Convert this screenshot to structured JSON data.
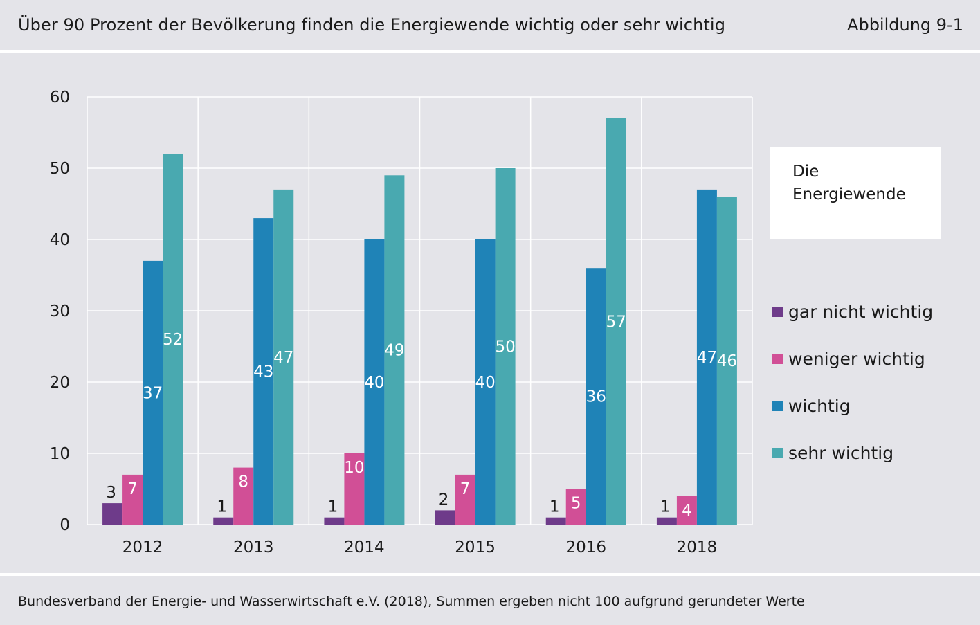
{
  "header": {
    "title": "Über 90 Prozent der Bevölkerung finden die Energiewende wichtig oder sehr wichtig",
    "figure_label": "Abbildung 9-1"
  },
  "footer": {
    "source": "Bundesverband der Energie- und Wasserwirtschaft e.V. (2018), Summen ergeben nicht 100 aufgrund gerundeter Werte"
  },
  "legend": {
    "title": "Die\nEnergiewende",
    "placement": "right"
  },
  "chart_data": {
    "type": "bar",
    "title": "",
    "xlabel": "",
    "ylabel": "",
    "ylim": [
      0,
      60
    ],
    "yticks": [
      0,
      10,
      20,
      30,
      40,
      50,
      60
    ],
    "grid": true,
    "categories": [
      "2012",
      "2013",
      "2014",
      "2015",
      "2016",
      "2018"
    ],
    "series": [
      {
        "name": "gar nicht wichtig",
        "color": "#6e3b8a",
        "values": [
          3,
          1,
          1,
          2,
          1,
          1
        ]
      },
      {
        "name": "weniger wichtig",
        "color": "#d14f96",
        "values": [
          7,
          8,
          10,
          7,
          5,
          4
        ]
      },
      {
        "name": "wichtig",
        "color": "#1f83b7",
        "values": [
          37,
          43,
          40,
          40,
          36,
          47
        ]
      },
      {
        "name": "sehr wichtig",
        "color": "#49a9b0",
        "values": [
          52,
          47,
          49,
          50,
          57,
          46
        ]
      }
    ]
  }
}
